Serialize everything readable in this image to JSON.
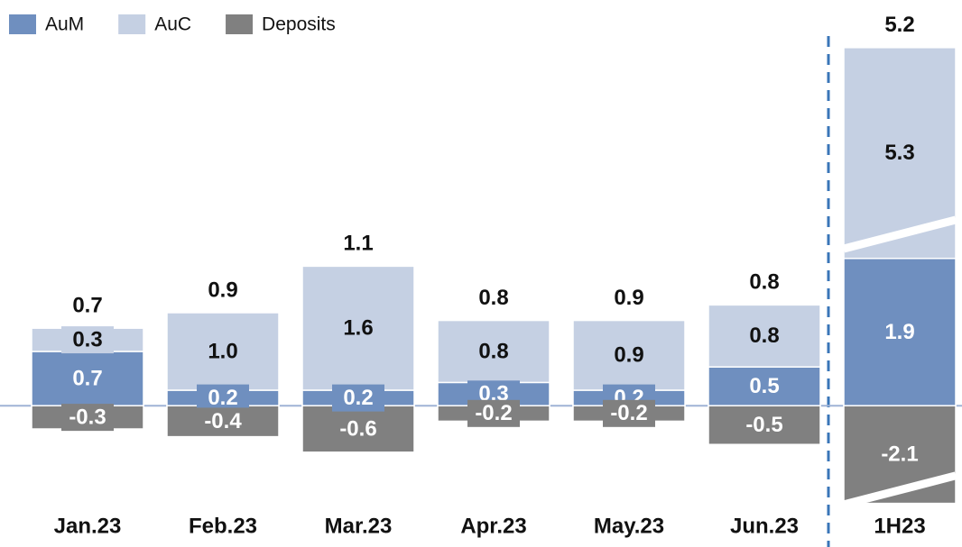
{
  "chart_data": {
    "type": "stacked_bar",
    "categories": [
      "Jan.23",
      "Feb.23",
      "Mar.23",
      "Apr.23",
      "May.23",
      "Jun.23",
      "1H23"
    ],
    "series": [
      {
        "name": "AuM",
        "color": "#6f8fbf",
        "values": [
          0.7,
          0.2,
          0.2,
          0.3,
          0.2,
          0.5,
          1.9
        ]
      },
      {
        "name": "AuC",
        "color": "#c5d0e3",
        "values": [
          0.3,
          1.0,
          1.6,
          0.8,
          0.9,
          0.8,
          5.3
        ],
        "value_labels": [
          "0.3",
          "1.0",
          "1.6",
          "0.8",
          "0.9",
          "0.8",
          "5.3"
        ]
      },
      {
        "name": "Deposits",
        "color": "#808080",
        "values": [
          -0.3,
          -0.4,
          -0.6,
          -0.2,
          -0.2,
          -0.5,
          -2.1
        ]
      }
    ],
    "totals": [
      0.7,
      0.9,
      1.1,
      0.8,
      0.9,
      0.8,
      5.2
    ],
    "ylim": [
      -2.5,
      7.5
    ],
    "axis_breaks": [
      [
        -1.94,
        -1.1
      ],
      [
        2.2,
        4.78
      ]
    ],
    "legend": "top-left"
  }
}
